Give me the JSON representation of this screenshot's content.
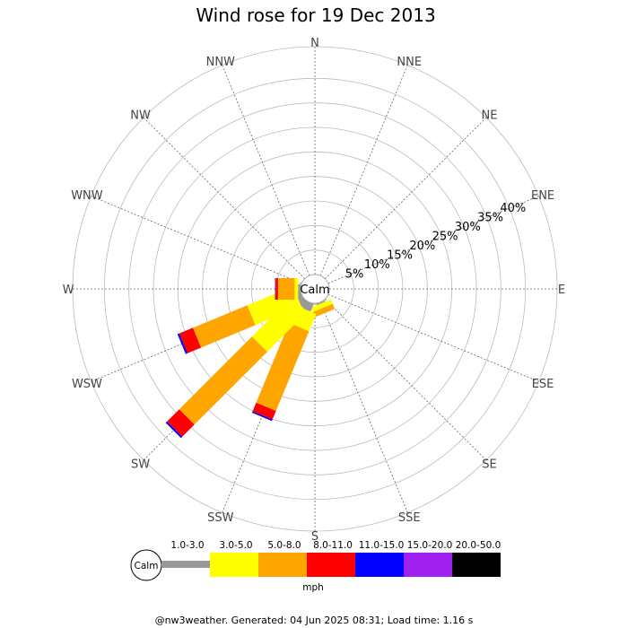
{
  "chart_data": {
    "type": "wind-rose",
    "title": "Wind rose for 19 Dec 2013",
    "directions": [
      "N",
      "NNE",
      "NE",
      "ENE",
      "E",
      "ESE",
      "SE",
      "SSE",
      "S",
      "SSW",
      "SW",
      "WSW",
      "W",
      "WNW",
      "NW",
      "NNW"
    ],
    "ring_labels": [
      "5%",
      "10%",
      "15%",
      "20%",
      "25%",
      "30%",
      "35%",
      "40%"
    ],
    "ring_values": [
      5,
      10,
      15,
      20,
      25,
      30,
      35,
      40
    ],
    "r_max": 45,
    "calm_label": "Calm",
    "bins": [
      {
        "label": "1.0-3.0",
        "color": "#999999"
      },
      {
        "label": "3.0-5.0",
        "color": "#ffff00"
      },
      {
        "label": "5.0-8.0",
        "color": "#ffa500"
      },
      {
        "label": "8.0-11.0",
        "color": "#ff0000"
      },
      {
        "label": "11.0-15.0",
        "color": "#0000ff"
      },
      {
        "label": "15.0-20.0",
        "color": "#a020f0"
      },
      {
        "label": "20.0-50.0",
        "color": "#000000"
      }
    ],
    "unit": "mph",
    "series": [
      {
        "direction": "SSE",
        "cumulative": [
          0.3,
          1.3,
          2.4,
          2.4,
          2.4,
          2.4,
          2.4
        ]
      },
      {
        "direction": "S",
        "cumulative": [
          0,
          0,
          0,
          0,
          0,
          0,
          0
        ]
      },
      {
        "direction": "SSW",
        "cumulative": [
          1.7,
          5.5,
          23.1,
          25.0,
          25.3,
          25.3,
          25.3
        ]
      },
      {
        "direction": "SW",
        "cumulative": [
          1.5,
          13.0,
          34.0,
          37.5,
          37.9,
          37.9,
          37.9
        ]
      },
      {
        "direction": "WSW",
        "cumulative": [
          1.0,
          11.1,
          23.1,
          26.1,
          26.5,
          26.5,
          26.5
        ]
      },
      {
        "direction": "W",
        "cumulative": [
          0.5,
          1.2,
          4.6,
          5.1,
          5.2,
          5.2,
          5.2
        ]
      }
    ],
    "grid": true
  },
  "footer": "@nw3weather. Generated: 04 Jun 2025 08:31; Load time: 1.16 s"
}
